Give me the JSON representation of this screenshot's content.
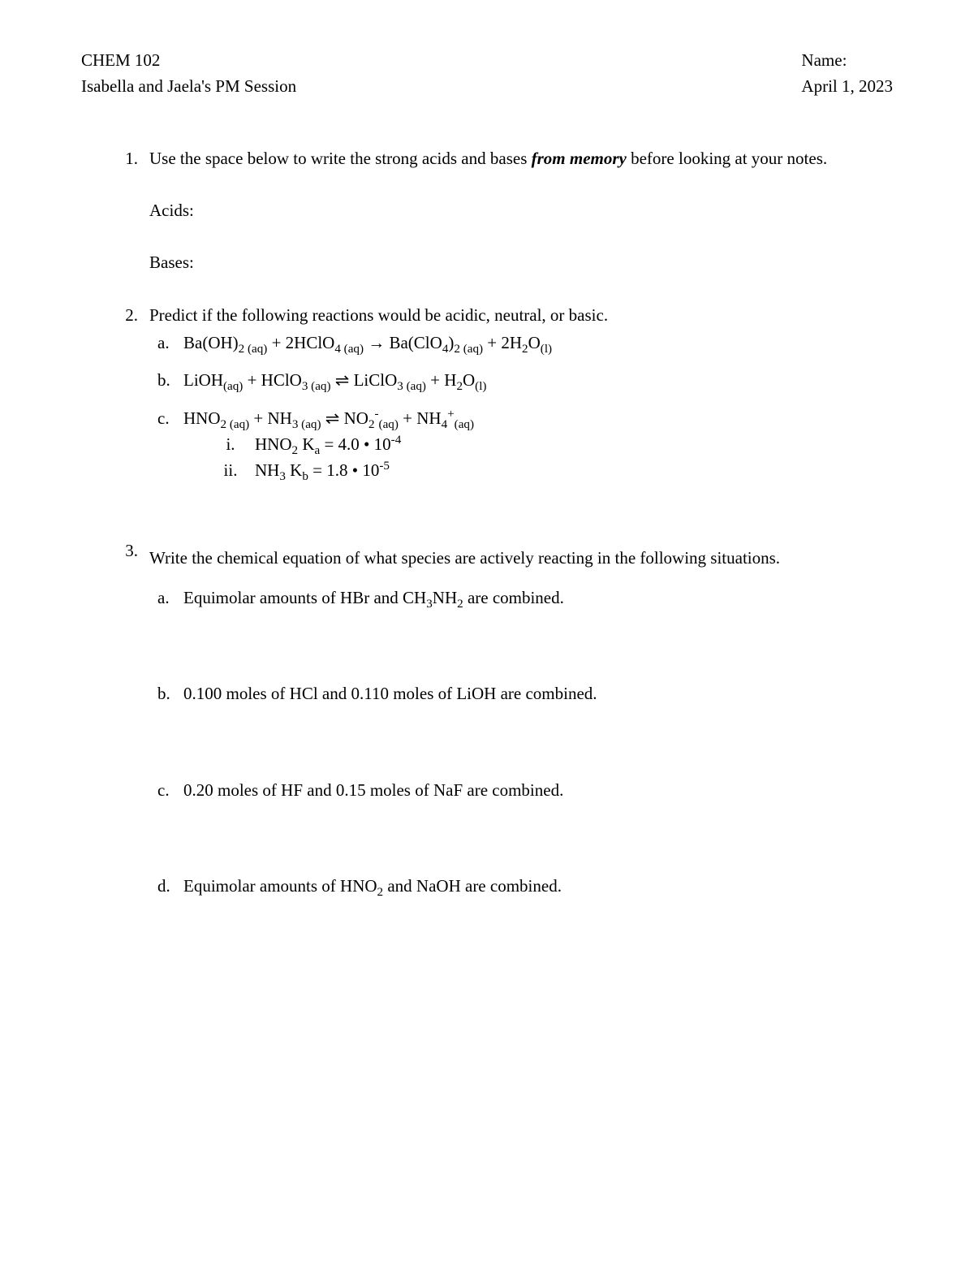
{
  "header": {
    "course": "CHEM 102",
    "session": "Isabella and Jaela's PM Session",
    "name_label": "Name:",
    "date": "April 1, 2023"
  },
  "q1": {
    "num": "1.",
    "text_a": "Use the space below to write the strong acids and bases ",
    "text_em": "from memory",
    "text_b": " before looking at your notes.",
    "acids_label": "Acids:",
    "bases_label": "Bases:"
  },
  "q2": {
    "num": "2.",
    "intro": "Predict if the following reactions would be acidic, neutral, or basic.",
    "a_num": "a.",
    "a_html": "Ba(OH)<sub>2 (aq)</sub> + 2HClO<sub>4 (aq)</sub> → Ba(ClO<sub>4</sub>)<sub>2 (aq)</sub> + 2H<sub>2</sub>O<sub>(l)</sub>",
    "b_num": "b.",
    "b_html": "LiOH<sub>(aq)</sub> + HClO<sub>3 (aq)</sub> ⇌ LiClO<sub>3 (aq)</sub> + H<sub>2</sub>O<sub>(l)</sub>",
    "c_num": "c.",
    "c_html": "HNO<sub>2 (aq)</sub> + NH<sub>3 (aq)</sub> ⇌ NO<sub>2</sub><sup>-</sup><sub>(aq)</sub> + NH<sub>4</sub><sup>+</sup><sub>(aq)</sub>",
    "ci_num": "i.",
    "ci_html": "HNO<sub>2</sub> K<sub>a</sub> = 4.0 • 10<sup>-4</sup>",
    "cii_num": "ii.",
    "cii_html": "NH<sub>3</sub> K<sub>b</sub> = 1.8 • 10<sup>-5</sup>"
  },
  "q3": {
    "num": "3.",
    "intro": "Write the chemical equation of what species are actively reacting in the following situations.",
    "a_num": "a.",
    "a_html": "Equimolar amounts of HBr and CH<sub>3</sub>NH<sub>2</sub> are combined.",
    "b_num": "b.",
    "b_html": "0.100 moles of HCl and 0.110 moles of LiOH are combined.",
    "c_num": "c.",
    "c_html": "0.20 moles of HF and 0.15 moles of NaF are combined.",
    "d_num": "d.",
    "d_html": "Equimolar amounts of HNO<sub>2</sub> and NaOH are combined."
  }
}
